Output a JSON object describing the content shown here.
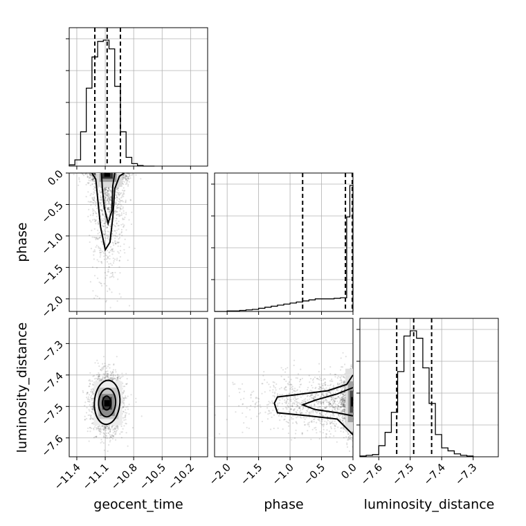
{
  "chart_data": {
    "type": "corner",
    "parameters": [
      "geocent_time",
      "phase",
      "luminosity_distance"
    ],
    "ranges": {
      "geocent_time": [
        -11.48,
        -10.02
      ],
      "phase": [
        -2.2,
        0.0
      ],
      "luminosity_distance": [
        -7.66,
        -7.22
      ]
    },
    "ticks": {
      "geocent_time": [
        -11.4,
        -11.1,
        -10.8,
        -10.5,
        -10.2
      ],
      "phase": [
        -2.0,
        -1.5,
        -1.0,
        -0.5,
        0.0
      ],
      "luminosity_distance": [
        -7.6,
        -7.5,
        -7.4,
        -7.3
      ]
    },
    "tick_labels": {
      "geocent_time": [
        "−11.4",
        "−11.1",
        "−10.8",
        "−10.5",
        "−10.2"
      ],
      "phase": [
        "−2.0",
        "−1.5",
        "−1.0",
        "−0.5",
        "0.0"
      ],
      "luminosity_distance": [
        "−7.6",
        "−7.5",
        "−7.4",
        "−7.3"
      ]
    },
    "quantiles": {
      "geocent_time": [
        -11.21,
        -11.08,
        -10.94
      ],
      "phase": [
        -0.8,
        -0.12,
        0.0
      ],
      "luminosity_distance": [
        -7.543,
        -7.489,
        -7.432
      ]
    },
    "histograms": {
      "geocent_time": {
        "edges": [
          -11.48,
          -11.42,
          -11.36,
          -11.3,
          -11.24,
          -11.18,
          -11.12,
          -11.06,
          -11.0,
          -10.94,
          -10.88,
          -10.82,
          -10.76,
          -10.7,
          -10.64,
          -10.58
        ],
        "counts": [
          2,
          10,
          55,
          125,
          175,
          200,
          202,
          188,
          128,
          55,
          14,
          4,
          1,
          0,
          0
        ]
      },
      "phase": {
        "edges": [
          -2.2,
          -2.0,
          -1.9,
          -1.8,
          -1.7,
          -1.6,
          -1.5,
          -1.4,
          -1.3,
          -1.2,
          -1.1,
          -1.0,
          -0.9,
          -0.8,
          -0.7,
          -0.6,
          -0.5,
          -0.4,
          -0.3,
          -0.2,
          -0.1,
          -0.05,
          0.0
        ],
        "counts": [
          0,
          1,
          1,
          2,
          3,
          4,
          6,
          8,
          10,
          12,
          14,
          16,
          18,
          20,
          22,
          24,
          24,
          24,
          25,
          26,
          180,
          240
        ]
      },
      "luminosity_distance": {
        "edges": [
          -7.66,
          -7.64,
          -7.62,
          -7.6,
          -7.58,
          -7.56,
          -7.54,
          -7.52,
          -7.5,
          -7.48,
          -7.46,
          -7.44,
          -7.42,
          -7.4,
          -7.38,
          -7.36,
          -7.34,
          -7.32,
          -7.3
        ],
        "counts": [
          1,
          2,
          3,
          15,
          33,
          60,
          115,
          163,
          170,
          160,
          120,
          72,
          30,
          12,
          8,
          4,
          2,
          1
        ]
      }
    },
    "grid": true
  }
}
